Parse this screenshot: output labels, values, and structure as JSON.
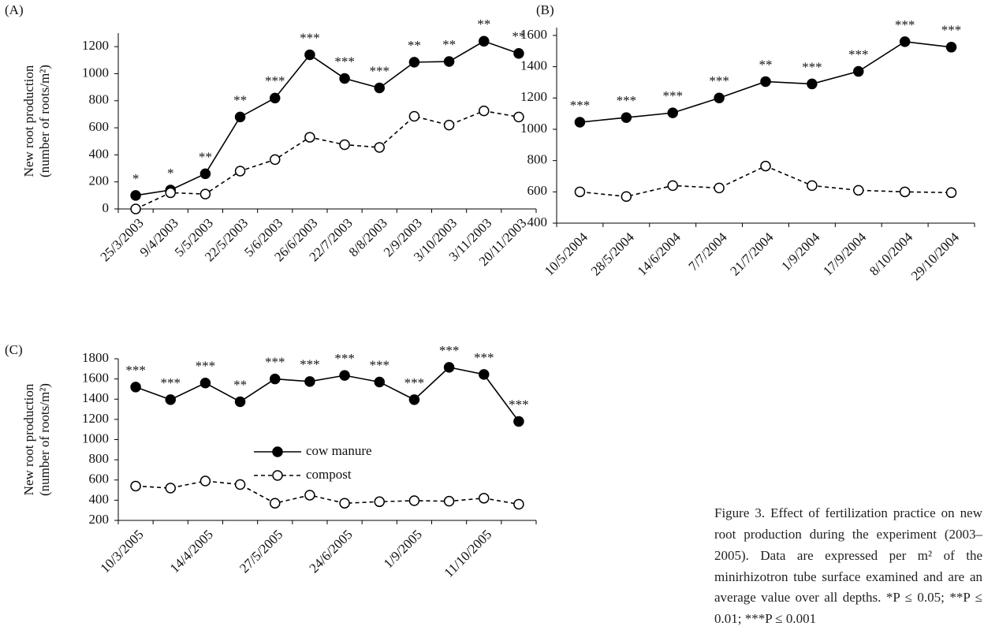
{
  "chart_data": [
    {
      "type": "line",
      "panel": "(A)",
      "ylabel": [
        "New root production",
        "(number of roots/m²)"
      ],
      "categories": [
        "25/3/2003",
        "9/4/2003",
        "5/5/2003",
        "22/5/2003",
        "5/6/2003",
        "26/6/2003",
        "22/7/2003",
        "8/8/2003",
        "2/9/2003",
        "3/10/2003",
        "3/11/2003",
        "20/11/2003"
      ],
      "series": [
        {
          "name": "cow manure",
          "color": "#000000",
          "marker": "filled",
          "dashed": false,
          "values": [
            100,
            140,
            260,
            680,
            820,
            1140,
            965,
            895,
            1085,
            1090,
            1240,
            1150
          ]
        },
        {
          "name": "compost",
          "color": "#000000",
          "marker": "open",
          "dashed": true,
          "values": [
            0,
            120,
            110,
            280,
            365,
            530,
            475,
            455,
            685,
            620,
            725,
            680
          ]
        }
      ],
      "significance": [
        "*",
        "*",
        "**",
        "**",
        "***",
        "***",
        "***",
        "***",
        "**",
        "**",
        "**",
        "**"
      ],
      "ylim": [
        0,
        1300
      ],
      "yticks": [
        0,
        200,
        400,
        600,
        800,
        1000,
        1200
      ]
    },
    {
      "type": "line",
      "panel": "(B)",
      "categories": [
        "10/5/2004",
        "28/5/2004",
        "14/6/2004",
        "7/7/2004",
        "21/7/2004",
        "1/9/2004",
        "17/9/2004",
        "8/10/2004",
        "29/10/2004"
      ],
      "series": [
        {
          "name": "cow manure",
          "color": "#000000",
          "marker": "filled",
          "dashed": false,
          "values": [
            1045,
            1075,
            1105,
            1200,
            1305,
            1290,
            1370,
            1560,
            1525
          ]
        },
        {
          "name": "compost",
          "color": "#000000",
          "marker": "open",
          "dashed": true,
          "values": [
            600,
            570,
            640,
            625,
            765,
            640,
            610,
            600,
            595
          ]
        }
      ],
      "significance": [
        "***",
        "***",
        "***",
        "***",
        "**",
        "***",
        "***",
        "***",
        "***"
      ],
      "ylim": [
        400,
        1650
      ],
      "yticks": [
        400,
        600,
        800,
        1000,
        1200,
        1400,
        1600
      ]
    },
    {
      "type": "line",
      "panel": "(C)",
      "ylabel": [
        "New root production",
        "(number of roots/m²)"
      ],
      "categories": [
        "10/3/2005",
        null,
        "14/4/2005",
        null,
        "27/5/2005",
        null,
        "24/6/2005",
        null,
        "1/9/2005",
        null,
        "11/10/2005",
        null
      ],
      "series": [
        {
          "name": "cow manure",
          "color": "#000000",
          "marker": "filled",
          "dashed": false,
          "values": [
            1520,
            1395,
            1560,
            1375,
            1600,
            1575,
            1635,
            1570,
            1395,
            1715,
            1645,
            1180
          ]
        },
        {
          "name": "compost",
          "color": "#000000",
          "marker": "open",
          "dashed": true,
          "values": [
            540,
            520,
            590,
            555,
            370,
            450,
            370,
            385,
            395,
            390,
            420,
            360
          ]
        }
      ],
      "significance": [
        "***",
        "***",
        "***",
        "**",
        "***",
        "***",
        "***",
        "***",
        "***",
        "***",
        "***",
        "***"
      ],
      "ylim": [
        200,
        1800
      ],
      "yticks": [
        200,
        400,
        600,
        800,
        1000,
        1200,
        1400,
        1600,
        1800
      ],
      "legend": "center"
    }
  ],
  "caption": "Figure 3. Effect of fertilization practice on new root production during the experiment (2003–2005). Data are expressed per m² of the minirhizotron tube surface examined and are an average value over all depths. *P ≤ 0.05; **P ≤ 0.01; ***P ≤ 0.001"
}
